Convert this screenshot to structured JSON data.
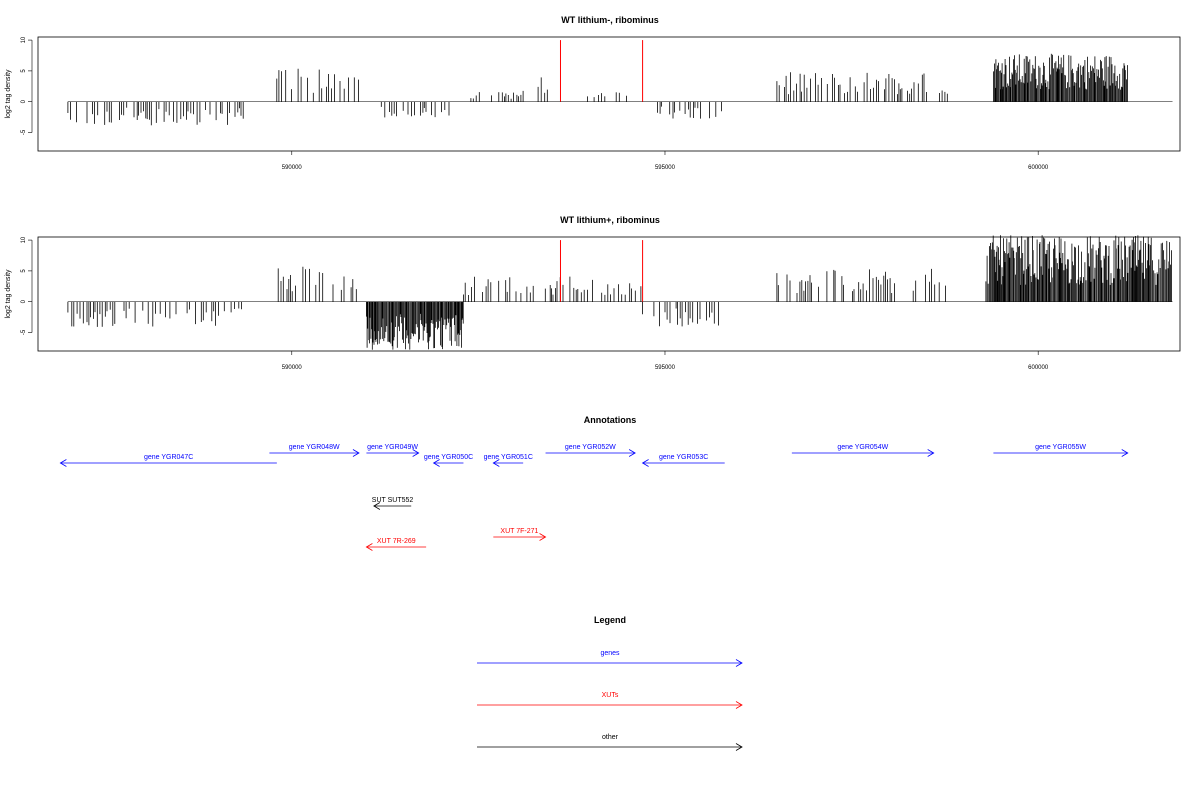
{
  "chart_data": [
    {
      "type": "bar",
      "title": "WT lithium-, ribominus",
      "ylabel": "log2 tag density",
      "ylim": [
        -8,
        10.5
      ],
      "yticks": [
        -5,
        0,
        5,
        10
      ],
      "xlim": [
        586600,
        601900
      ],
      "xticks": [
        590000,
        595000,
        600000
      ],
      "data_range": [
        587000,
        601800
      ],
      "coverage": [
        {
          "from": 587000,
          "to": 589400,
          "level": -3.2
        },
        {
          "from": 589800,
          "to": 590900,
          "level": 4.5
        },
        {
          "from": 591200,
          "to": 592200,
          "level": -2.5
        },
        {
          "from": 592400,
          "to": 593100,
          "level": 1.5
        },
        {
          "from": 593300,
          "to": 593500,
          "level": 3.5
        },
        {
          "from": 593900,
          "to": 594500,
          "level": 1.5
        },
        {
          "from": 594900,
          "to": 595800,
          "level": -2.5
        },
        {
          "from": 596500,
          "to": 598800,
          "level": 4.0
        },
        {
          "from": 599400,
          "to": 601200,
          "level": 6.5
        }
      ],
      "markers": [
        {
          "x": 593600,
          "value": 10,
          "color": "#ff0000"
        },
        {
          "x": 594700,
          "value": 10,
          "color": "#ff0000"
        }
      ]
    },
    {
      "type": "bar",
      "title": "WT lithium+, ribominus",
      "ylabel": "log2 tag density",
      "ylim": [
        -8,
        10.5
      ],
      "yticks": [
        -5,
        0,
        5,
        10
      ],
      "xlim": [
        586600,
        601900
      ],
      "xticks": [
        590000,
        595000,
        600000
      ],
      "data_range": [
        587000,
        601800
      ],
      "coverage": [
        {
          "from": 587000,
          "to": 589400,
          "level": -3.5
        },
        {
          "from": 589800,
          "to": 590900,
          "level": 5.0
        },
        {
          "from": 591000,
          "to": 592300,
          "level": -6.5
        },
        {
          "from": 592300,
          "to": 593600,
          "level": 3.5
        },
        {
          "from": 593600,
          "to": 594700,
          "level": 3.5
        },
        {
          "from": 594700,
          "to": 595800,
          "level": -3.5
        },
        {
          "from": 596500,
          "to": 598800,
          "level": 4.5
        },
        {
          "from": 599300,
          "to": 601800,
          "level": 9.0
        }
      ],
      "markers": [
        {
          "x": 593600,
          "value": 10,
          "color": "#ff0000"
        },
        {
          "x": 594700,
          "value": 10,
          "color": "#ff0000"
        }
      ]
    }
  ],
  "annotations": {
    "title": "Annotations",
    "colors": {
      "gene": "#0000ff",
      "xut": "#ff0000",
      "other": "#000000"
    },
    "features": [
      {
        "label": "gene YGR047C",
        "kind": "gene",
        "start": 586900,
        "end": 589800,
        "dir": "left",
        "row": 2
      },
      {
        "label": "gene YGR048W",
        "kind": "gene",
        "start": 589700,
        "end": 590900,
        "dir": "right",
        "row": 1
      },
      {
        "label": "gene YGR049W",
        "kind": "gene",
        "start": 591000,
        "end": 591700,
        "dir": "right",
        "row": 1
      },
      {
        "label": "gene YGR050C",
        "kind": "gene",
        "start": 591900,
        "end": 592300,
        "dir": "left",
        "row": 2
      },
      {
        "label": "gene YGR051C",
        "kind": "gene",
        "start": 592700,
        "end": 593100,
        "dir": "left",
        "row": 2
      },
      {
        "label": "gene YGR052W",
        "kind": "gene",
        "start": 593400,
        "end": 594600,
        "dir": "right",
        "row": 1
      },
      {
        "label": "gene YGR053C",
        "kind": "gene",
        "start": 594700,
        "end": 595800,
        "dir": "left",
        "row": 2
      },
      {
        "label": "gene YGR054W",
        "kind": "gene",
        "start": 596700,
        "end": 598600,
        "dir": "right",
        "row": 1
      },
      {
        "label": "gene YGR055W",
        "kind": "gene",
        "start": 599400,
        "end": 601200,
        "dir": "right",
        "row": 1
      },
      {
        "label": "SUT SUT552",
        "kind": "other",
        "start": 591100,
        "end": 591600,
        "dir": "left",
        "row": 3
      },
      {
        "label": "XUT 7F-271",
        "kind": "xut",
        "start": 592700,
        "end": 593400,
        "dir": "right",
        "row": 4
      },
      {
        "label": "XUT 7R-269",
        "kind": "xut",
        "start": 591000,
        "end": 591800,
        "dir": "left",
        "row": 5
      }
    ]
  },
  "legend": {
    "title": "Legend",
    "items": [
      {
        "label": "genes",
        "color": "#0000ff"
      },
      {
        "label": "XUTs",
        "color": "#ff0000"
      },
      {
        "label": "other",
        "color": "#000000"
      }
    ]
  }
}
